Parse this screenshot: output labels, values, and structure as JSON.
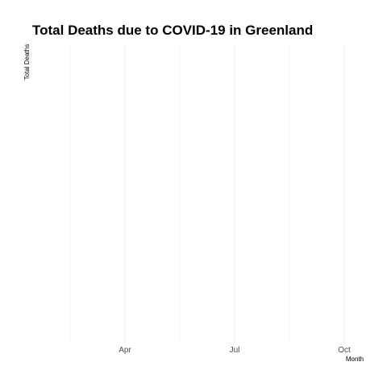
{
  "chart_data": {
    "type": "line",
    "title": "Total Deaths due to COVID-19 in Greenland",
    "xlabel": "Month",
    "ylabel": "Total Deaths",
    "x_tick_labels": [
      "Apr",
      "Jul",
      "Oct"
    ],
    "series": [],
    "grid": true,
    "legend": "none"
  }
}
